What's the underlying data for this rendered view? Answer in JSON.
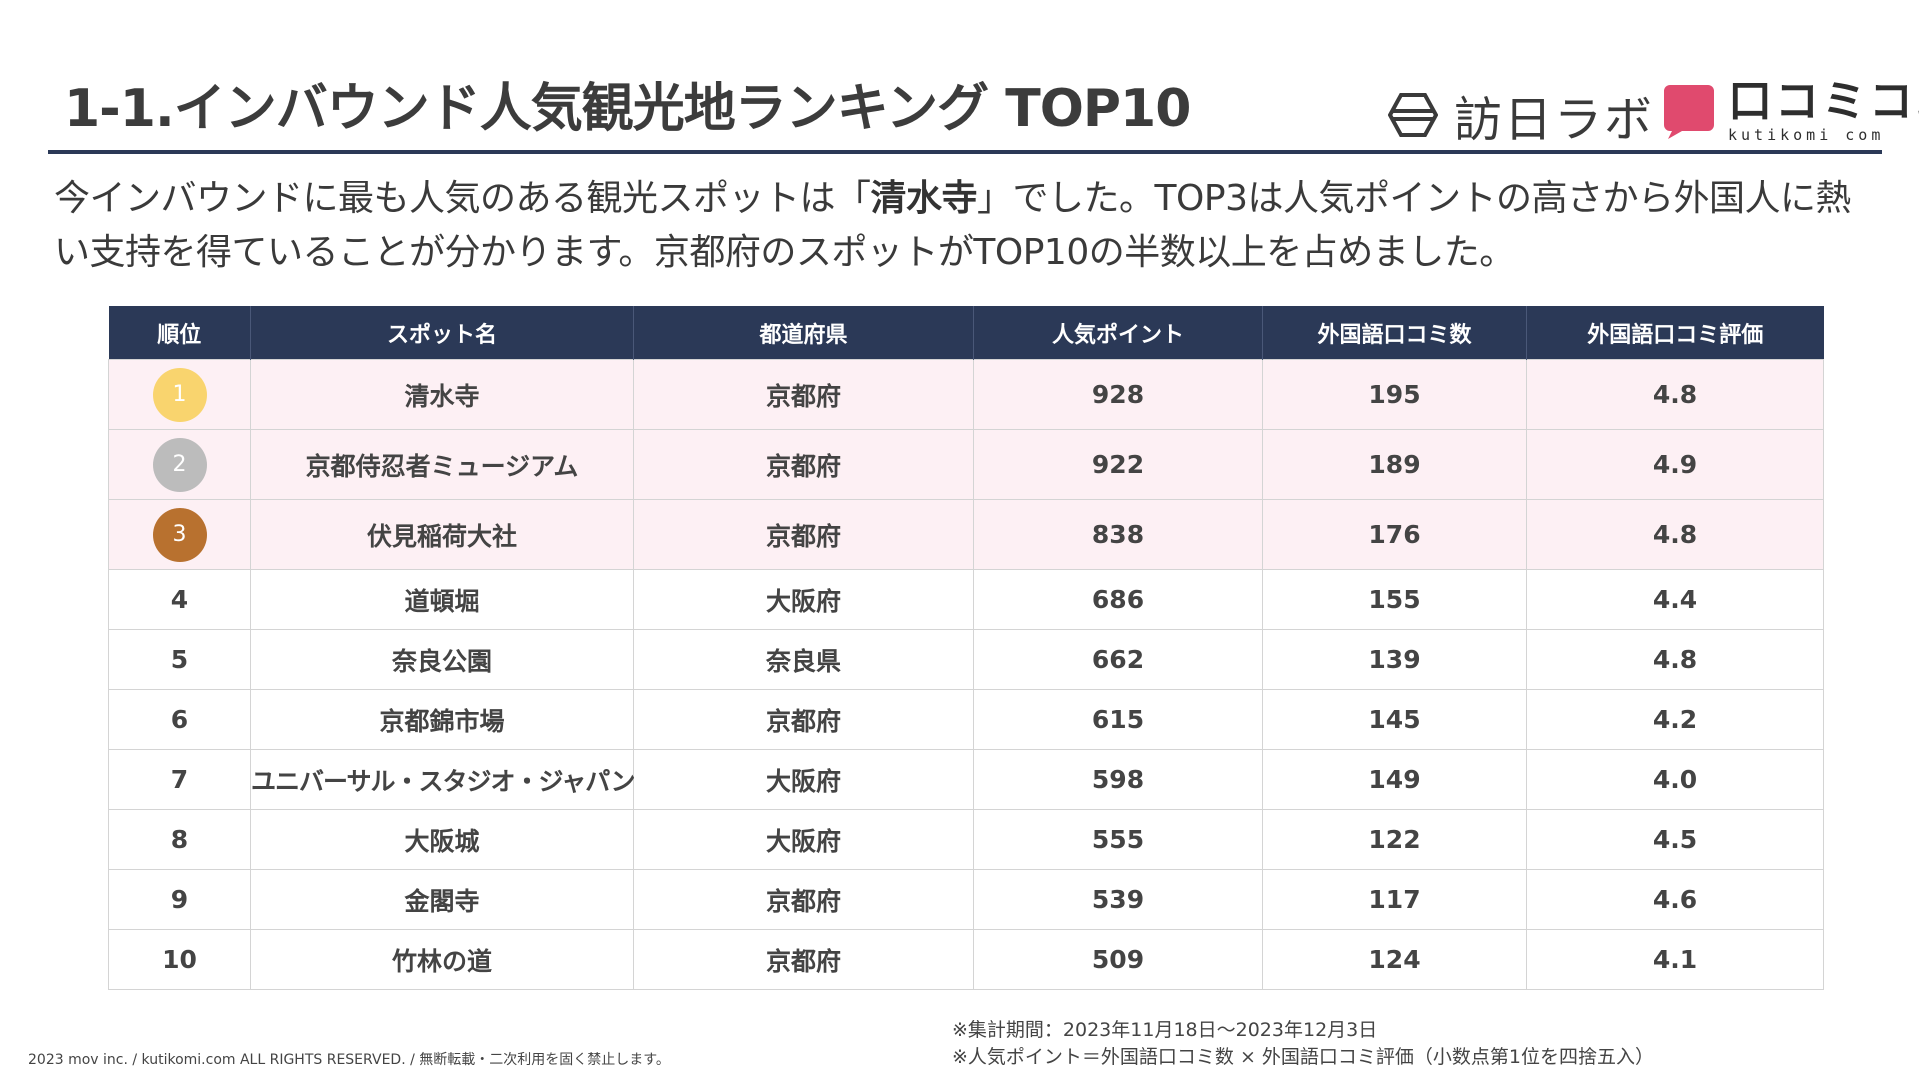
{
  "header": {
    "title": "1-1.インバウンド人気観光地ランキング TOP10",
    "logo_primary": "訪日ラボ",
    "logo_secondary": "口コミコム",
    "logo_secondary_sub": "kutikomi com"
  },
  "lead": {
    "line_a": "今インバウンドに最も人気のある観光スポットは「",
    "highlight": "清水寺",
    "line_b": "」でした。TOP3は人気ポイントの高さから外国人に熱い支持を得ていることが分かります。京都府のスポットがTOP10の半数以上を占めました。"
  },
  "table": {
    "headers": [
      "順位",
      "スポット名",
      "都道府県",
      "人気ポイント",
      "外国語口コミ数",
      "外国語口コミ評価"
    ],
    "rows": [
      {
        "rank": "1",
        "name": "清水寺",
        "pref": "京都府",
        "points": "928",
        "reviews": "195",
        "rating": "4.8"
      },
      {
        "rank": "2",
        "name": "京都侍忍者ミュージアム",
        "pref": "京都府",
        "points": "922",
        "reviews": "189",
        "rating": "4.9"
      },
      {
        "rank": "3",
        "name": "伏見稲荷大社",
        "pref": "京都府",
        "points": "838",
        "reviews": "176",
        "rating": "4.8"
      },
      {
        "rank": "4",
        "name": "道頓堀",
        "pref": "大阪府",
        "points": "686",
        "reviews": "155",
        "rating": "4.4"
      },
      {
        "rank": "5",
        "name": "奈良公園",
        "pref": "奈良県",
        "points": "662",
        "reviews": "139",
        "rating": "4.8"
      },
      {
        "rank": "6",
        "name": "京都錦市場",
        "pref": "京都府",
        "points": "615",
        "reviews": "145",
        "rating": "4.2"
      },
      {
        "rank": "7",
        "name": "ユニバーサル・スタジオ・ジャパン",
        "pref": "大阪府",
        "points": "598",
        "reviews": "149",
        "rating": "4.0"
      },
      {
        "rank": "8",
        "name": "大阪城",
        "pref": "大阪府",
        "points": "555",
        "reviews": "122",
        "rating": "4.5"
      },
      {
        "rank": "9",
        "name": "金閣寺",
        "pref": "京都府",
        "points": "539",
        "reviews": "117",
        "rating": "4.6"
      },
      {
        "rank": "10",
        "name": "竹林の道",
        "pref": "京都府",
        "points": "509",
        "reviews": "124",
        "rating": "4.1"
      }
    ]
  },
  "notes": {
    "period": "※集計期間：2023年11月18日～2023年12月3日",
    "formula": "※人気ポイント＝外国語口コミ数 × 外国語口コミ評価（小数点第1位を四捨五入）"
  },
  "footer": {
    "copyright": "2023 mov inc. / kutikomi.com ALL RIGHTS RESERVED. / 無断転載・二次利用を固く禁止します。"
  },
  "colors": {
    "header_bg": "#2b3957",
    "highlight_row": "#fdf0f4",
    "gold": "#f9d46e",
    "silver": "#bcbcbc",
    "bronze": "#b8712f",
    "brand_pink": "#e04a6e"
  }
}
